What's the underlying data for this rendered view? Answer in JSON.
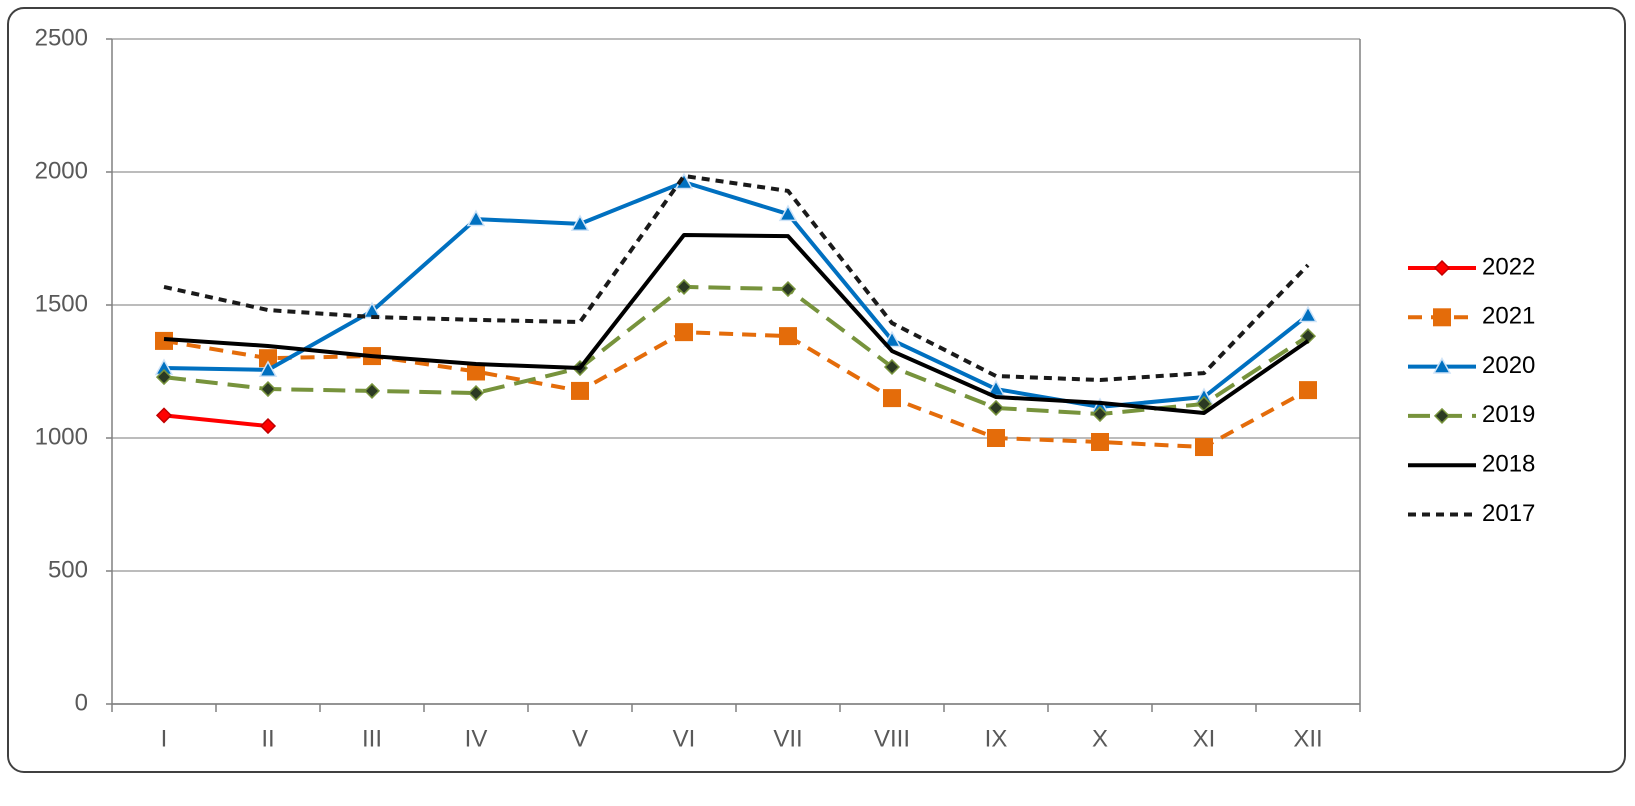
{
  "chart_data": {
    "type": "line",
    "categories": [
      "I",
      "II",
      "III",
      "IV",
      "V",
      "VI",
      "VII",
      "VIII",
      "IX",
      "X",
      "XI",
      "XII"
    ],
    "ylim": [
      0,
      2500
    ],
    "yticks": [
      0,
      500,
      1000,
      1500,
      2000,
      2500
    ],
    "grid": true,
    "legend": "right",
    "series": [
      {
        "name": "2022",
        "color": "#ff0000",
        "dash": "solid",
        "marker": "diamond",
        "values": [
          1085,
          1045,
          null,
          null,
          null,
          null,
          null,
          null,
          null,
          null,
          null,
          null
        ]
      },
      {
        "name": "2021",
        "color": "#e46c0a",
        "dash": "dash",
        "marker": "square",
        "values": [
          1365,
          1300,
          1308,
          1250,
          1177,
          1398,
          1383,
          1150,
          1000,
          985,
          966,
          1180
        ]
      },
      {
        "name": "2020",
        "color": "#0070c0",
        "dash": "solid",
        "marker": "triangle",
        "values": [
          1263,
          1256,
          1477,
          1823,
          1805,
          1962,
          1842,
          1368,
          1184,
          1117,
          1154,
          1462
        ]
      },
      {
        "name": "2019",
        "color": "#77933c",
        "dash": "longdash",
        "marker": "diamond-dark",
        "values": [
          1229,
          1184,
          1177,
          1169,
          1263,
          1568,
          1560,
          1267,
          1113,
          1090,
          1128,
          1383
        ]
      },
      {
        "name": "2018",
        "color": "#000000",
        "dash": "solid",
        "marker": "none",
        "values": [
          1372,
          1346,
          1308,
          1278,
          1263,
          1763,
          1759,
          1327,
          1154,
          1132,
          1094,
          1365
        ]
      },
      {
        "name": "2017",
        "color": "#1a1a1a",
        "dash": "shortdash",
        "marker": "none",
        "values": [
          1568,
          1481,
          1455,
          1444,
          1436,
          1985,
          1929,
          1432,
          1233,
          1218,
          1244,
          1650
        ]
      }
    ]
  }
}
